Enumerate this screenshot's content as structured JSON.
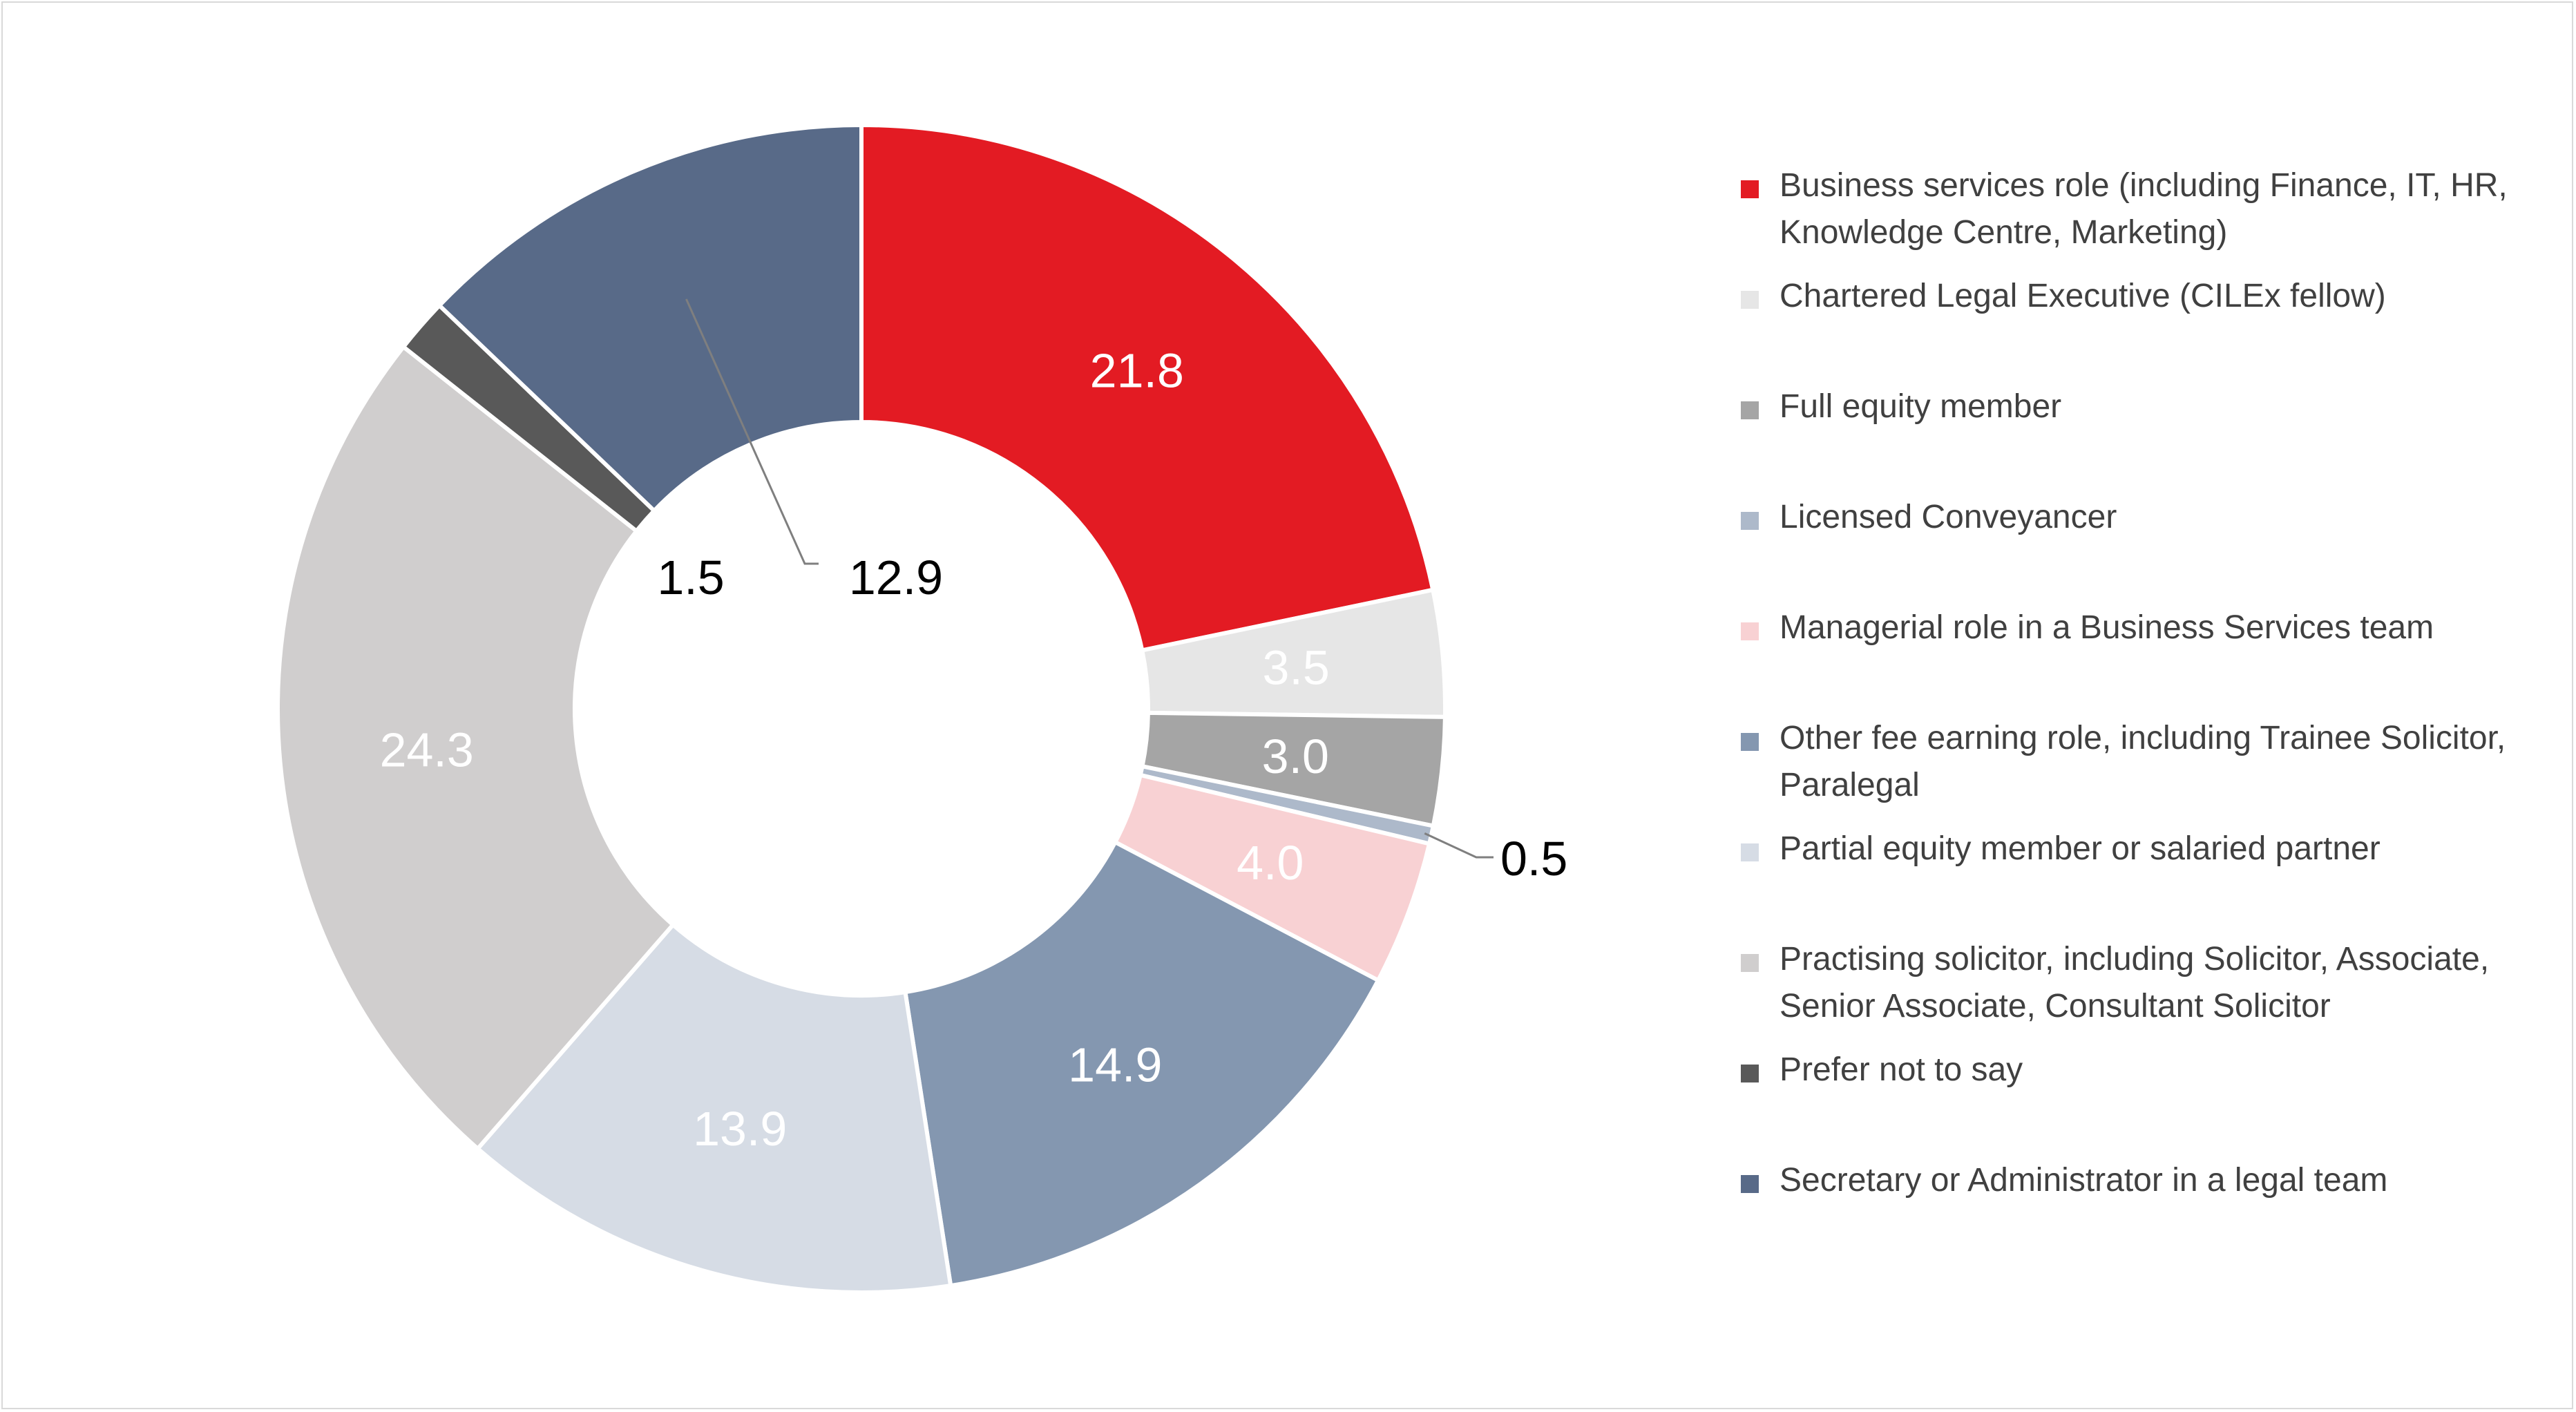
{
  "colors": {
    "background": "#ffffff",
    "frame_border": "#d9d9d9",
    "slice_border": "#ffffff",
    "leader_line": "#7f7f7f"
  },
  "chart_data": {
    "type": "pie",
    "variant": "donut",
    "title": "",
    "start_angle": "12 o'clock, clockwise",
    "legend_position": "right",
    "slices": [
      {
        "label": "Business services role (including Finance, IT, HR, Knowledge Centre, Marketing)",
        "value": 21.8,
        "display": "21.8",
        "color": "#e31b23",
        "label_color": "#ffffff",
        "label_placement": "inside"
      },
      {
        "label": "Chartered Legal Executive (CILEx fellow)",
        "value": 3.5,
        "display": "3.5",
        "color": "#e6e6e6",
        "label_color": "#ffffff",
        "label_placement": "inside"
      },
      {
        "label": "Full equity member",
        "value": 3.0,
        "display": "3.0",
        "color": "#a5a5a5",
        "label_color": "#ffffff",
        "label_placement": "inside"
      },
      {
        "label": "Licensed Conveyancer",
        "value": 0.5,
        "display": "0.5",
        "color": "#adb9ca",
        "label_color": "#000000",
        "label_placement": "outside-leader"
      },
      {
        "label": "Managerial role in a Business Services team",
        "value": 4.0,
        "display": "4.0",
        "color": "#f8d1d3",
        "label_color": "#ffffff",
        "label_placement": "inside"
      },
      {
        "label": "Other fee earning role, including Trainee Solicitor, Paralegal",
        "value": 14.9,
        "display": "14.9",
        "color": "#8497b0",
        "label_color": "#ffffff",
        "label_placement": "inside"
      },
      {
        "label": "Partial equity member or salaried partner",
        "value": 13.9,
        "display": "13.9",
        "color": "#d6dce5",
        "label_color": "#ffffff",
        "label_placement": "inside"
      },
      {
        "label": "Practising solicitor, including Solicitor, Associate, Senior Associate, Consultant Solicitor",
        "value": 24.3,
        "display": "24.3",
        "color": "#d0cece",
        "label_color": "#ffffff",
        "label_placement": "inside"
      },
      {
        "label": "Prefer not to say",
        "value": 1.5,
        "display": "1.5",
        "color": "#595959",
        "label_color": "#000000",
        "label_placement": "hole"
      },
      {
        "label": "Secretary or Administrator in a legal team",
        "value": 12.9,
        "display": "12.9",
        "color": "#586a88",
        "label_color": "#000000",
        "label_placement": "hole-leader"
      }
    ]
  },
  "legend": {
    "items": [
      {
        "line1": "Business services role (including Finance, IT, HR,",
        "line2": "Knowledge Centre, Marketing)",
        "color": "#e31b23"
      },
      {
        "line1": "Chartered Legal Executive (CILEx fellow)",
        "line2": "",
        "color": "#e6e6e6"
      },
      {
        "line1": "Full equity member",
        "line2": "",
        "color": "#a5a5a5"
      },
      {
        "line1": "Licensed Conveyancer",
        "line2": "",
        "color": "#adb9ca"
      },
      {
        "line1": "Managerial role in a Business Services team",
        "line2": "",
        "color": "#f8d1d3"
      },
      {
        "line1": "Other fee earning role, including Trainee Solicitor,",
        "line2": "Paralegal",
        "color": "#8497b0"
      },
      {
        "line1": "Partial equity member or salaried partner",
        "line2": "",
        "color": "#d6dce5"
      },
      {
        "line1": "Practising solicitor, including Solicitor, Associate,",
        "line2": "Senior Associate, Consultant Solicitor",
        "color": "#d0cece"
      },
      {
        "line1": "Prefer not to say",
        "line2": "",
        "color": "#595959"
      },
      {
        "line1": "Secretary or Administrator in a legal team",
        "line2": "",
        "color": "#586a88"
      }
    ]
  }
}
